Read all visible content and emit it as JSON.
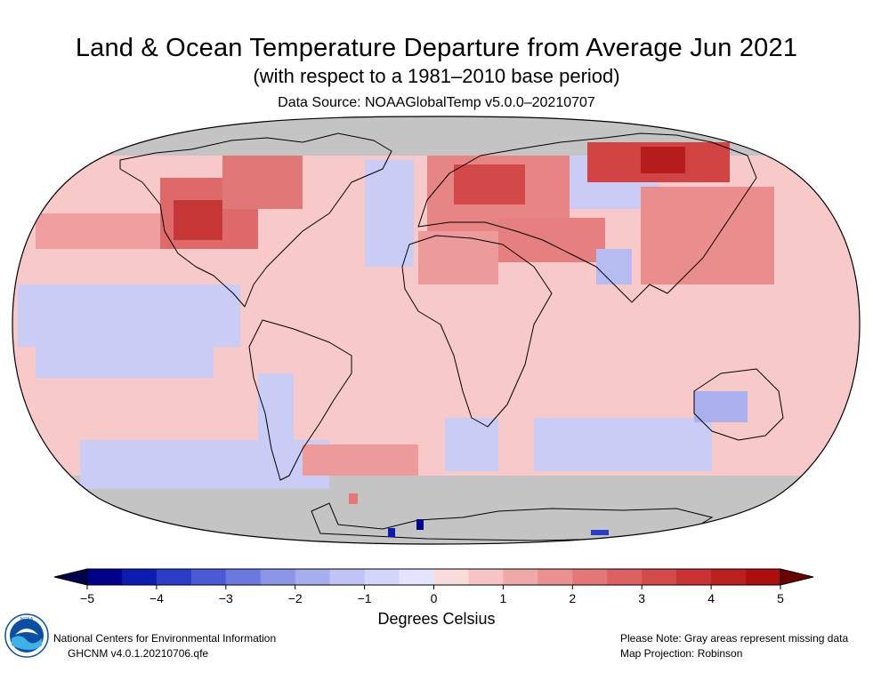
{
  "header": {
    "title": "Land & Ocean Temperature Departure from Average Jun 2021",
    "subtitle": "(with respect to a 1981–2010 base period)",
    "source": "Data Source: NOAAGlobalTemp v5.0.0–20210707"
  },
  "map": {
    "projection": "Robinson",
    "missing_color": "#c4c4c4",
    "coastline_color": "#000000"
  },
  "colorbar": {
    "ticks": [
      "−5",
      "−4",
      "−3",
      "−2",
      "−1",
      "0",
      "1",
      "2",
      "3",
      "4",
      "5"
    ],
    "units_label": "Degrees Celsius",
    "range": [
      -5,
      5
    ],
    "extend": "both",
    "colors": [
      "#00008a",
      "#0d1cb0",
      "#2b3cc8",
      "#4a5ad6",
      "#6a78e0",
      "#8a95e8",
      "#a6aef0",
      "#bfc4f5",
      "#d2d6fa",
      "#e2e5fd",
      "#fbdcdc",
      "#f6c4c4",
      "#f0a9a9",
      "#eb9090",
      "#e47878",
      "#dc6060",
      "#d44949",
      "#c93333",
      "#bb1f1f",
      "#ad0f0f"
    ],
    "low_extend_color": "#00004e",
    "high_extend_color": "#6a0000"
  },
  "footer": {
    "org": "National Centers for Environmental Information",
    "dataset": "GHCNM v4.0.1.20210706.qfe",
    "note": "Please Note: Gray areas represent missing data",
    "projection_note": "Map Projection: Robinson"
  },
  "logo": {
    "name": "NOAA",
    "text": "NOAA",
    "colors": [
      "#0a4fa3",
      "#3fb1e6",
      "#ffffff"
    ]
  }
}
